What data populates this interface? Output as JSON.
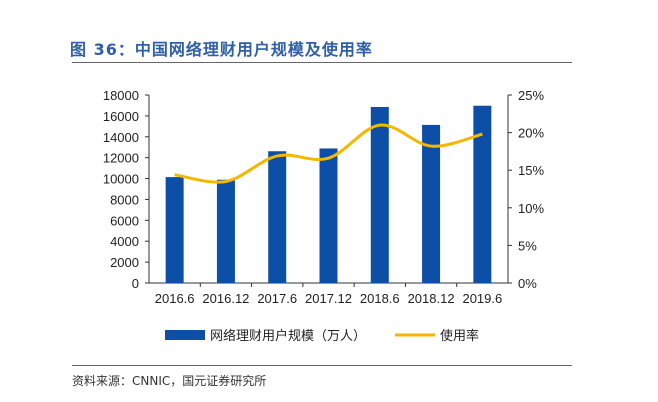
{
  "title": "图 36：中国网络理财用户规模及使用率",
  "source": "资料来源：CNNIC，国元证券研究所",
  "chart_data": {
    "type": "bar+line",
    "categories": [
      "2016.6",
      "2016.12",
      "2017.6",
      "2017.12",
      "2018.6",
      "2018.12",
      "2019.6"
    ],
    "series": [
      {
        "name": "网络理财用户规模（万人）",
        "type": "bar",
        "axis": "left",
        "color": "#0d4ea6",
        "values": [
          10140,
          9890,
          12614,
          12881,
          16855,
          15138,
          16972
        ]
      },
      {
        "name": "使用率",
        "type": "line",
        "axis": "right",
        "color": "#f5b800",
        "values": [
          14.4,
          13.5,
          16.9,
          16.6,
          21.0,
          18.2,
          19.8
        ]
      }
    ],
    "yleft": {
      "range": [
        0,
        18000
      ],
      "ticks": [
        "0",
        "2000",
        "4000",
        "6000",
        "8000",
        "10000",
        "12000",
        "14000",
        "16000",
        "18000"
      ]
    },
    "yright": {
      "range": [
        0,
        25
      ],
      "ticks": [
        "0%",
        "5%",
        "10%",
        "15%",
        "20%",
        "25%"
      ]
    },
    "legend": "bottom",
    "grid": false
  }
}
